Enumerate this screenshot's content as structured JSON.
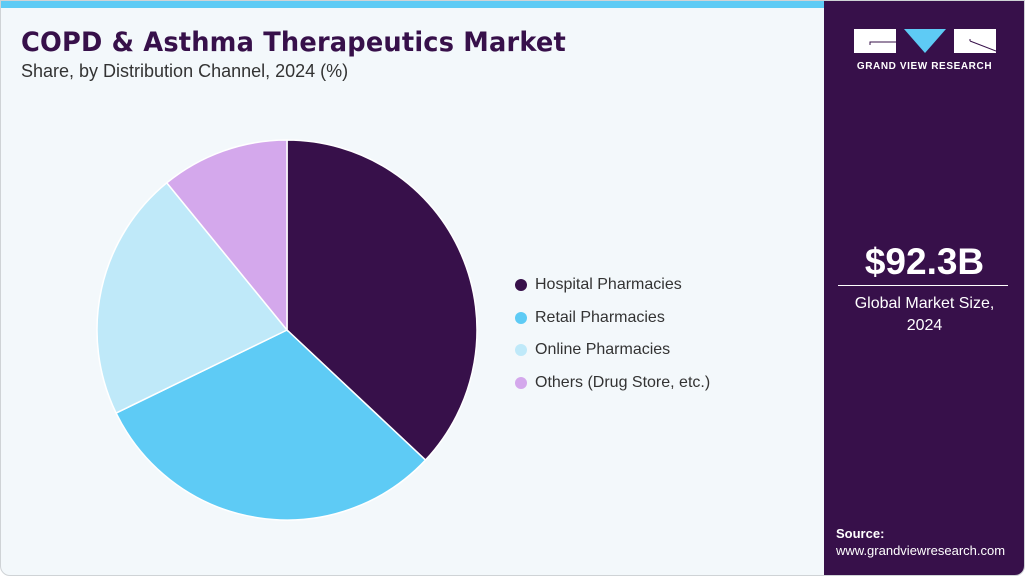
{
  "header": {
    "title": "COPD & Asthma Therapeutics Market",
    "subtitle": "Share, by Distribution Channel, 2024 (%)"
  },
  "legend": {
    "items": [
      {
        "label": "Hospital Pharmacies",
        "color": "#37104a"
      },
      {
        "label": "Retail Pharmacies",
        "color": "#5ecbf5"
      },
      {
        "label": "Online Pharmacies",
        "color": "#bfe9f9"
      },
      {
        "label": "Others (Drug Store, etc.)",
        "color": "#d4a8ec"
      }
    ]
  },
  "side_panel": {
    "logo_text": "GRAND VIEW RESEARCH",
    "market_value": "$92.3B",
    "market_label_line1": "Global Market Size,",
    "market_label_line2": "2024",
    "source_label": "Source:",
    "source_url": "www.grandviewresearch.com"
  },
  "colors": {
    "brand_dark": "#37104a",
    "accent_blue": "#5ecbf5",
    "background": "#f3f8fb"
  },
  "chart_data": {
    "type": "pie",
    "title": "COPD & Asthma Therapeutics Market",
    "subtitle": "Share, by Distribution Channel, 2024 (%)",
    "categories": [
      "Hospital Pharmacies",
      "Retail Pharmacies",
      "Online Pharmacies",
      "Others (Drug Store, etc.)"
    ],
    "values": [
      37.0,
      30.8,
      21.3,
      10.9
    ],
    "colors": [
      "#37104a",
      "#5ecbf5",
      "#bfe9f9",
      "#d4a8ec"
    ],
    "start_angle_deg": 0,
    "direction": "clockwise",
    "legend_position": "right",
    "annotations": [
      "$92.3B Global Market Size, 2024"
    ]
  }
}
